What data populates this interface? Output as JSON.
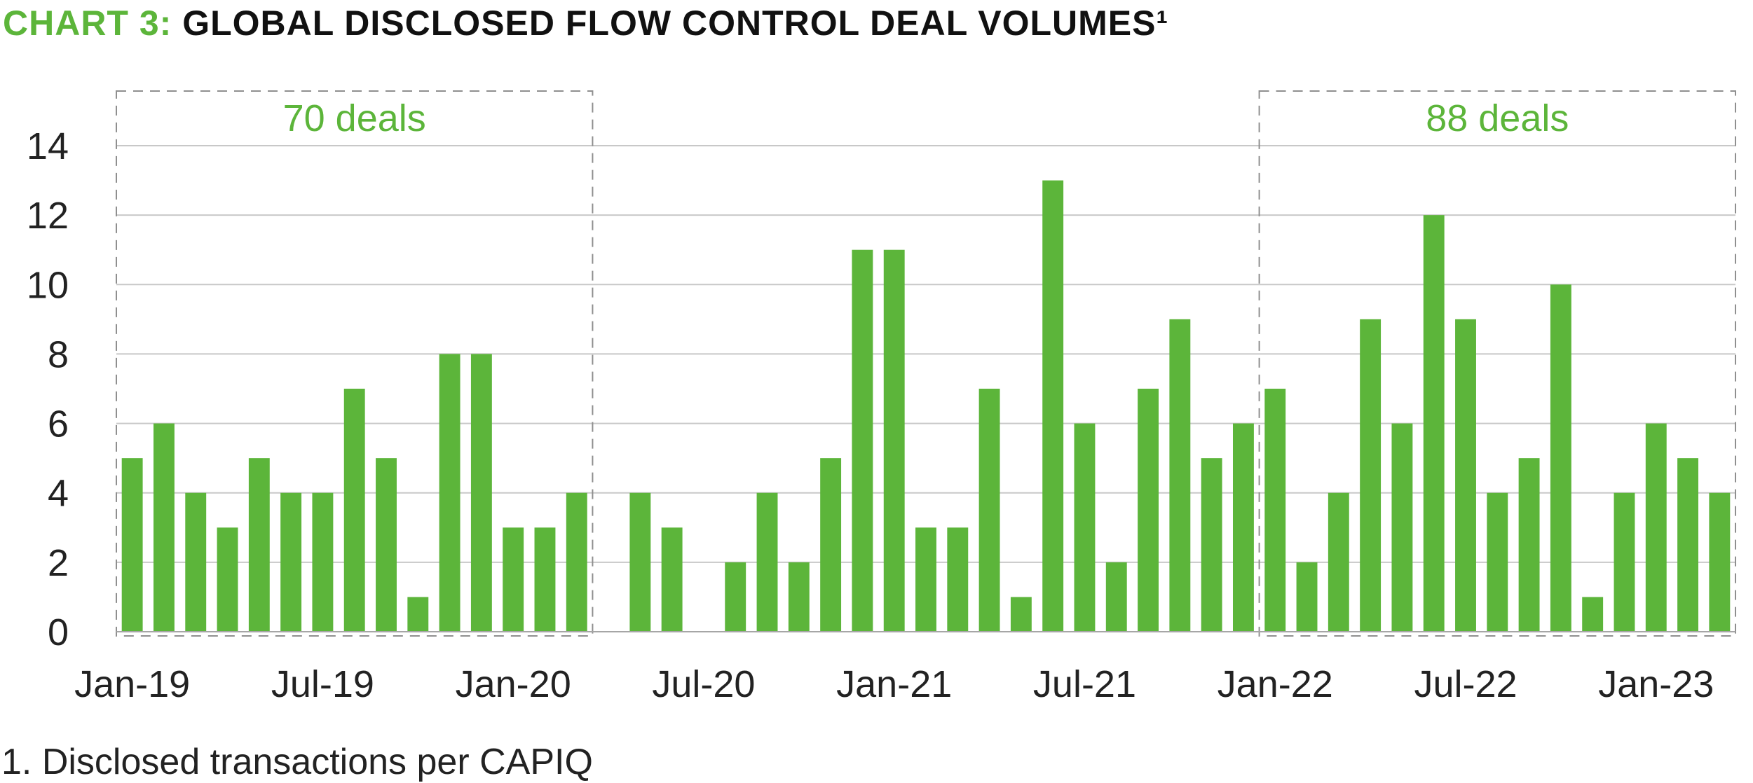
{
  "title": {
    "prefix": "CHART 3:",
    "main": "GLOBAL DISCLOSED FLOW CONTROL DEAL VOLUMES¹"
  },
  "footnote": "1. Disclosed transactions per CAPIQ",
  "colors": {
    "accent": "#5cb53a",
    "bar": "#5cb53a",
    "text": "#222222",
    "grid": "#c8c8c8",
    "box_border": "#8f8f8f"
  },
  "chart_data": {
    "type": "bar",
    "categories": [
      "Jan-19",
      "Feb-19",
      "Mar-19",
      "Apr-19",
      "May-19",
      "Jun-19",
      "Jul-19",
      "Aug-19",
      "Sep-19",
      "Oct-19",
      "Nov-19",
      "Dec-19",
      "Jan-20",
      "Feb-20",
      "Mar-20",
      "Apr-20",
      "May-20",
      "Jun-20",
      "Jul-20",
      "Aug-20",
      "Sep-20",
      "Oct-20",
      "Nov-20",
      "Dec-20",
      "Jan-21",
      "Feb-21",
      "Mar-21",
      "Apr-21",
      "May-21",
      "Jun-21",
      "Jul-21",
      "Aug-21",
      "Sep-21",
      "Oct-21",
      "Nov-21",
      "Dec-21",
      "Jan-22",
      "Feb-22",
      "Mar-22",
      "Apr-22",
      "May-22",
      "Jun-22",
      "Jul-22",
      "Aug-22",
      "Sep-22",
      "Oct-22",
      "Nov-22",
      "Dec-22",
      "Jan-23",
      "Feb-23",
      "Mar-23"
    ],
    "values": [
      5,
      6,
      4,
      3,
      5,
      4,
      4,
      7,
      5,
      1,
      8,
      8,
      3,
      3,
      4,
      null,
      4,
      3,
      0,
      2,
      4,
      2,
      5,
      11,
      11,
      3,
      3,
      7,
      1,
      13,
      6,
      2,
      7,
      9,
      5,
      6,
      7,
      2,
      4,
      9,
      6,
      12,
      9,
      4,
      5,
      10,
      1,
      4,
      6,
      5,
      4
    ],
    "x_tick_labels": [
      {
        "index": 0,
        "label": "Jan-19"
      },
      {
        "index": 6,
        "label": "Jul-19"
      },
      {
        "index": 12,
        "label": "Jan-20"
      },
      {
        "index": 18,
        "label": "Jul-20"
      },
      {
        "index": 24,
        "label": "Jan-21"
      },
      {
        "index": 30,
        "label": "Jul-21"
      },
      {
        "index": 36,
        "label": "Jan-22"
      },
      {
        "index": 42,
        "label": "Jul-22"
      },
      {
        "index": 48,
        "label": "Jan-23"
      }
    ],
    "yticks": [
      0,
      2,
      4,
      6,
      8,
      10,
      12,
      14
    ],
    "ylim": [
      0,
      14
    ],
    "grid": true,
    "annotations": [
      {
        "label": "70 deals",
        "start_index": 0,
        "end_index": 14
      },
      {
        "label": "88 deals",
        "start_index": 36,
        "end_index": 50
      }
    ]
  }
}
